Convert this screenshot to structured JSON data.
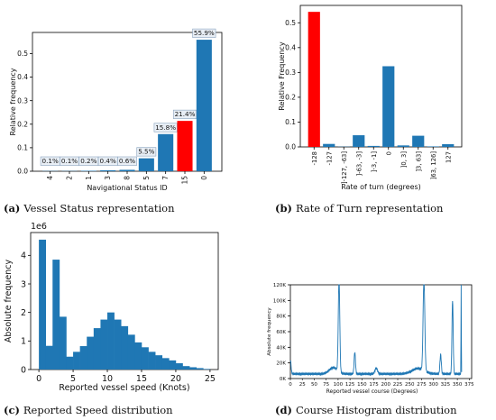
{
  "colors": {
    "bar": "#1f77b4",
    "highlight": "#ff0000",
    "axis": "#000000",
    "label_bg": "#e8eef5",
    "label_edge": "#8aa3be"
  },
  "chart_data": [
    {
      "id": "a",
      "type": "bar",
      "xlabel": "Navigational Status ID",
      "ylabel": "Relative frequency",
      "categories": [
        "4",
        "2",
        "1",
        "3",
        "8",
        "5",
        "7",
        "15",
        "0"
      ],
      "values": [
        0.001,
        0.001,
        0.002,
        0.004,
        0.006,
        0.055,
        0.158,
        0.214,
        0.559
      ],
      "data_labels": [
        "0.1%",
        "0.1%",
        "0.2%",
        "0.4%",
        "0.6%",
        "5.5%",
        "15.8%",
        "21.4%",
        "55.9%"
      ],
      "highlight": [
        "15"
      ],
      "ylim": [
        0,
        0.59
      ],
      "yticks": [
        0.0,
        0.1,
        0.2,
        0.3,
        0.4,
        0.5
      ],
      "ytick_labels": [
        "0.0",
        "0.1",
        "0.2",
        "0.3",
        "0.4",
        "0.5"
      ],
      "caption_letter": "(a)",
      "caption": "Vessel Status representation"
    },
    {
      "id": "b",
      "type": "bar",
      "xlabel": "Rate of turn (degrees)",
      "ylabel": "Relative Frequency",
      "categories": [
        "-128",
        "-127",
        "]-127, -63]",
        "]-63, -3]",
        "]-3, -1]",
        "0",
        "]0, 3]",
        "]3, 63]",
        "]63, 126]",
        "127"
      ],
      "values": [
        0.544,
        0.012,
        0.001,
        0.047,
        0.004,
        0.325,
        0.006,
        0.045,
        0.002,
        0.011
      ],
      "highlight": [
        "-128"
      ],
      "ylim": [
        0,
        0.57
      ],
      "yticks": [
        0.0,
        0.1,
        0.2,
        0.3,
        0.4,
        0.5
      ],
      "ytick_labels": [
        "0.0",
        "0.1",
        "0.2",
        "0.3",
        "0.4",
        "0.5"
      ],
      "caption_letter": "(b)",
      "caption": "Rate of Turn representation"
    },
    {
      "id": "c",
      "type": "bar",
      "histogram": true,
      "xlabel": "Reported vessel speed (Knots)",
      "ylabel": "Absolute frequency",
      "offset_label": "1e6",
      "bin_start": 0,
      "bin_width": 1,
      "values": [
        4.55,
        0.83,
        3.85,
        1.85,
        0.45,
        0.62,
        0.82,
        1.15,
        1.45,
        1.75,
        2.0,
        1.75,
        1.52,
        1.22,
        0.95,
        0.78,
        0.62,
        0.5,
        0.4,
        0.32,
        0.22,
        0.12,
        0.08,
        0.05,
        0.02
      ],
      "xlim": [
        -1.2,
        26.2
      ],
      "ylim": [
        0,
        4.8
      ],
      "xticks": [
        0,
        5,
        10,
        15,
        20,
        25
      ],
      "yticks": [
        0,
        1,
        2,
        3,
        4
      ],
      "caption_letter": "(c)",
      "caption": "Reported Speed distribution"
    },
    {
      "id": "d",
      "type": "line",
      "xlabel": "Reported vessel course (Degrees)",
      "ylabel": "Absolute frequency",
      "xlim": [
        0,
        380
      ],
      "ylim": [
        0,
        120000
      ],
      "xticks": [
        0,
        25,
        50,
        75,
        100,
        125,
        150,
        175,
        200,
        225,
        250,
        275,
        300,
        325,
        350,
        375
      ],
      "yticks": [
        0,
        20000,
        40000,
        60000,
        80000,
        100000,
        120000
      ],
      "ytick_labels": [
        "0K",
        "20K",
        "40K",
        "60K",
        "80K",
        "100K",
        "120K"
      ],
      "peaks": [
        {
          "x": 0,
          "y": 18000,
          "w": 2
        },
        {
          "x": 90,
          "y": 8000,
          "w": 12
        },
        {
          "x": 102,
          "y": 120000,
          "w": 2.2
        },
        {
          "x": 135,
          "y": 28000,
          "w": 2
        },
        {
          "x": 180,
          "y": 7000,
          "w": 4
        },
        {
          "x": 268,
          "y": 7000,
          "w": 18
        },
        {
          "x": 280,
          "y": 120000,
          "w": 2.5
        },
        {
          "x": 315,
          "y": 25000,
          "w": 2
        },
        {
          "x": 340,
          "y": 95000,
          "w": 1.8
        },
        {
          "x": 358,
          "y": 120000,
          "w": 0.5
        }
      ],
      "baseline": 4000,
      "caption_letter": "(d)",
      "caption": "Course Histogram distribution"
    }
  ]
}
